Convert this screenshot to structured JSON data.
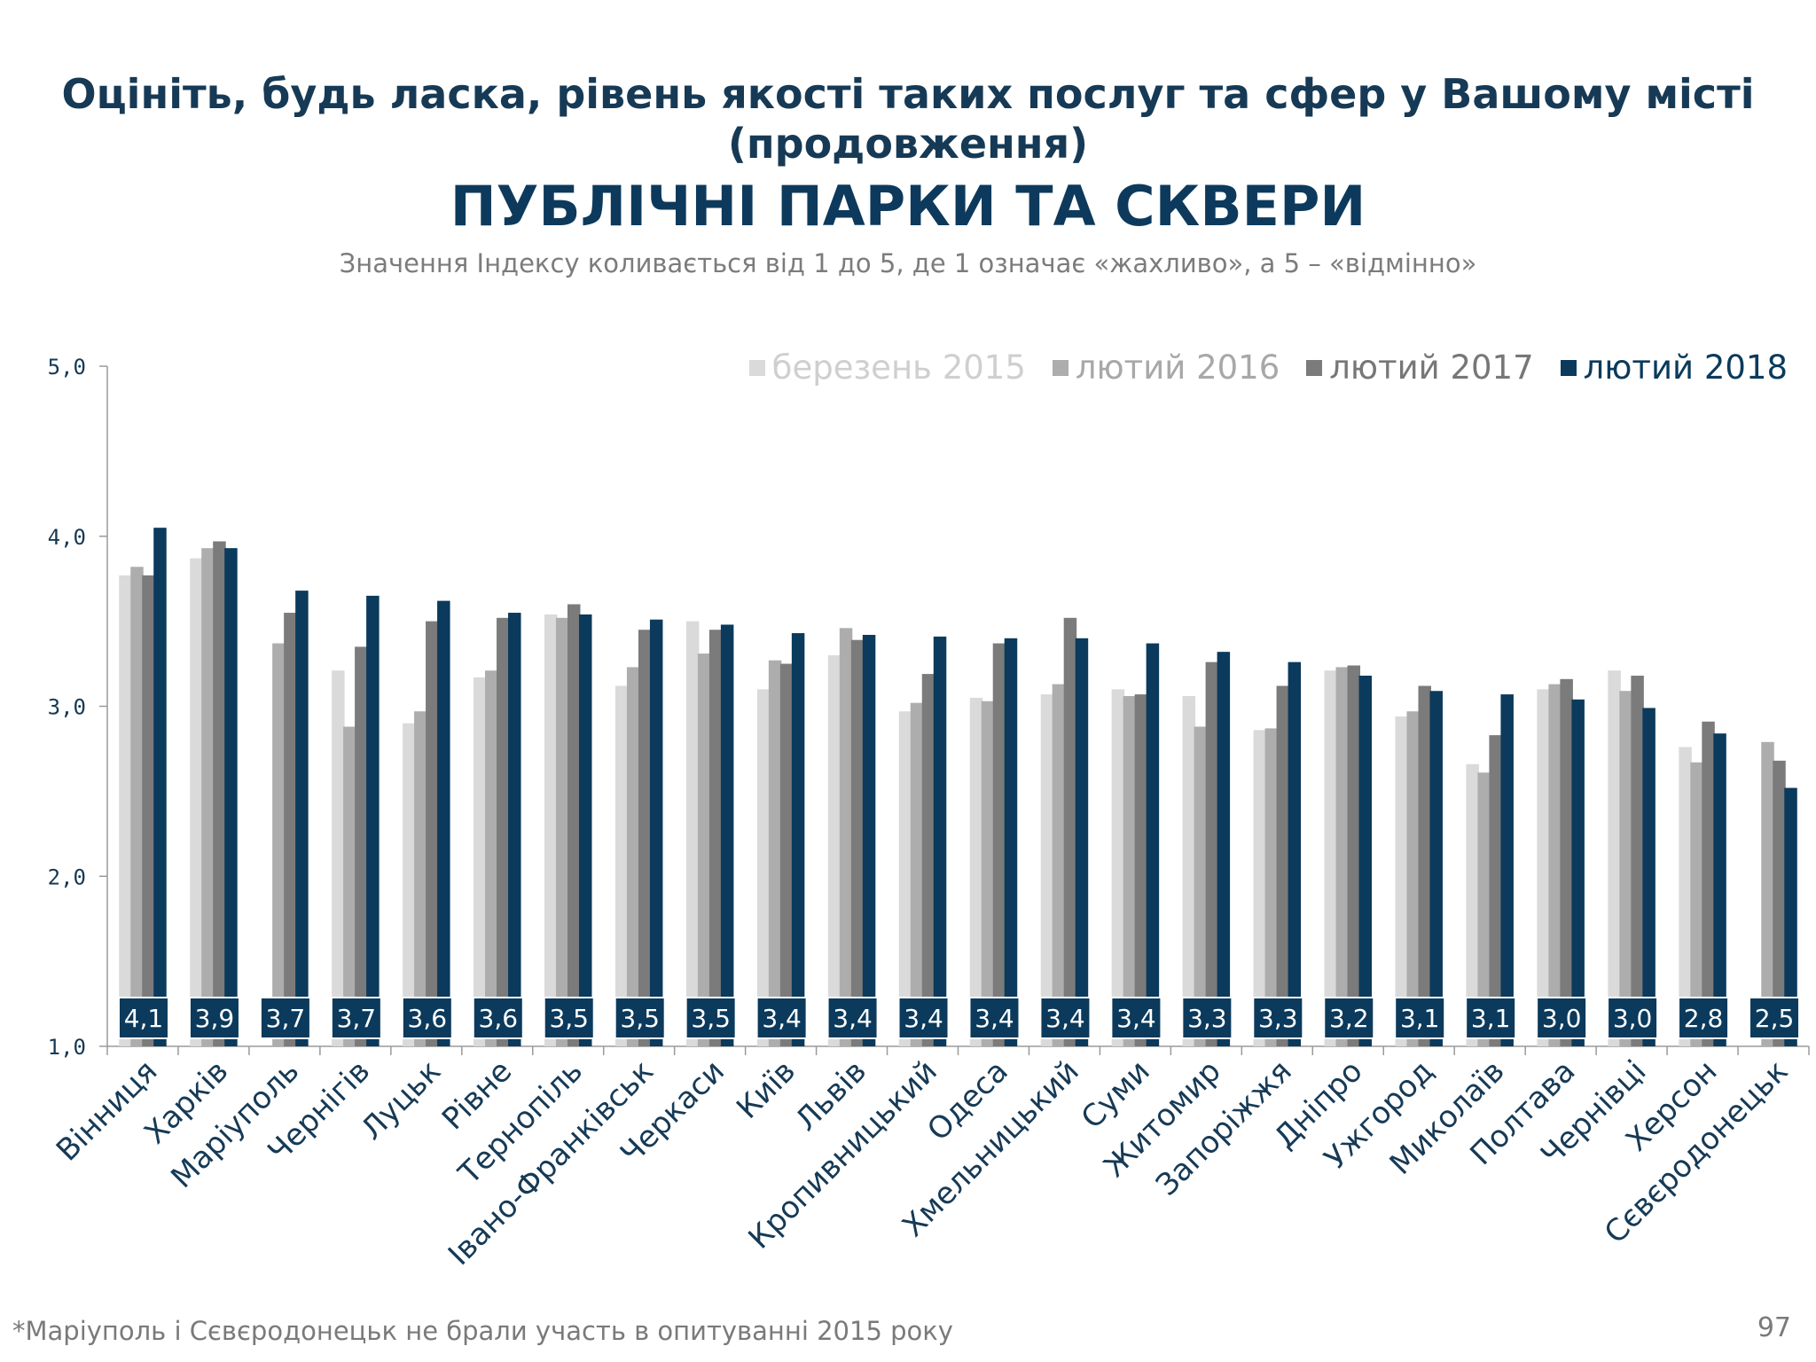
{
  "header": {
    "title_line1": "Оцініть, будь ласка, рівень якості таких послуг та сфер у Вашому місті",
    "title_line2": "(продовження)",
    "main_title": "ПУБЛІЧНІ ПАРКИ ТА СКВЕРИ",
    "subtitle": "Значення Індексу коливається від 1 до 5, де 1 означає «жахливо», а 5 – «відмінно»"
  },
  "footer": {
    "footnote": "*Маріуполь і Сєвєродонецьк не брали участь в опитуванні 2015 року",
    "page_number": "97"
  },
  "colors": {
    "s2015": "#dadada",
    "s2016": "#adadad",
    "s2017": "#7b7b7b",
    "s2018": "#0b3a5c",
    "label_box": "#0b3a5c",
    "axis_text": "#163a56"
  },
  "chart_data": {
    "type": "bar",
    "title": "ПУБЛІЧНІ ПАРКИ ТА СКВЕРИ",
    "xlabel": "",
    "ylabel": "",
    "ylim": [
      1.0,
      5.0
    ],
    "yticks": [
      "1,0",
      "2,0",
      "3,0",
      "4,0",
      "5,0"
    ],
    "ytick_values": [
      1,
      2,
      3,
      4,
      5
    ],
    "legend_position": "top-right",
    "categories": [
      "Вінниця",
      "Харків",
      "Маріуполь",
      "Чернігів",
      "Луцьк",
      "Рівне",
      "Тернопіль",
      "Івано-Франківськ",
      "Черкаси",
      "Київ",
      "Львів",
      "Кропивницький",
      "Одеса",
      "Хмельницький",
      "Суми",
      "Житомир",
      "Запоріжжя",
      "Дніпро",
      "Ужгород",
      "Миколаїв",
      "Полтава",
      "Чернівці",
      "Херсон",
      "Сєвєродонецьк"
    ],
    "series": [
      {
        "name": "березень 2015",
        "values": [
          3.77,
          3.87,
          null,
          3.21,
          2.9,
          3.17,
          3.54,
          3.12,
          3.5,
          3.1,
          3.3,
          2.97,
          3.05,
          3.07,
          3.1,
          3.06,
          2.86,
          3.21,
          2.94,
          2.66,
          3.1,
          3.21,
          2.76,
          null
        ]
      },
      {
        "name": "лютий 2016",
        "values": [
          3.82,
          3.93,
          3.37,
          2.88,
          2.97,
          3.21,
          3.52,
          3.23,
          3.31,
          3.27,
          3.46,
          3.02,
          3.03,
          3.13,
          3.06,
          2.88,
          2.87,
          3.23,
          2.97,
          2.61,
          3.13,
          3.09,
          2.67,
          2.79
        ]
      },
      {
        "name": "лютий 2017",
        "values": [
          3.77,
          3.97,
          3.55,
          3.35,
          3.5,
          3.52,
          3.6,
          3.45,
          3.45,
          3.25,
          3.39,
          3.19,
          3.37,
          3.52,
          3.07,
          3.26,
          3.12,
          3.24,
          3.12,
          2.83,
          3.16,
          3.18,
          2.91,
          2.68
        ]
      },
      {
        "name": "лютий 2018",
        "values": [
          4.05,
          3.93,
          3.68,
          3.65,
          3.62,
          3.55,
          3.54,
          3.51,
          3.48,
          3.43,
          3.42,
          3.41,
          3.4,
          3.4,
          3.37,
          3.32,
          3.26,
          3.18,
          3.09,
          3.07,
          3.04,
          2.99,
          2.84,
          2.52
        ]
      }
    ],
    "data_labels": [
      "4,1",
      "3,9",
      "3,7",
      "3,7",
      "3,6",
      "3,6",
      "3,5",
      "3,5",
      "3,5",
      "3,4",
      "3,4",
      "3,4",
      "3,4",
      "3,4",
      "3,4",
      "3,3",
      "3,3",
      "3,2",
      "3,1",
      "3,1",
      "3,0",
      "3,0",
      "2,8",
      "2,5"
    ]
  }
}
